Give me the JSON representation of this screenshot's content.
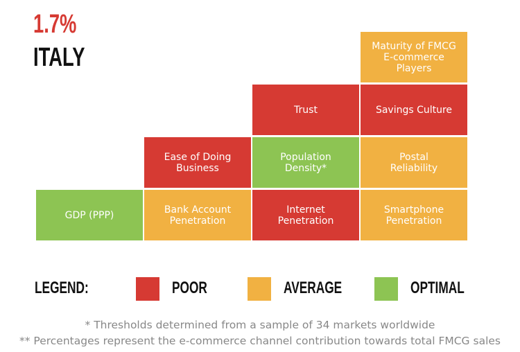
{
  "header": {
    "percentage": "1.7%",
    "country": "ITALY"
  },
  "legend": {
    "title": "LEGEND:",
    "items": [
      {
        "label": "POOR",
        "color": "#d63a33"
      },
      {
        "label": "AVERAGE",
        "color": "#f1b142"
      },
      {
        "label": "OPTIMAL",
        "color": "#8dc453"
      }
    ]
  },
  "columns": [
    [
      {
        "label": "GDP (PPP)",
        "level": 2
      }
    ],
    [
      {
        "label": "Bank Account\nPenetration",
        "level": 1
      },
      {
        "label": "Ease of Doing\nBusiness",
        "level": 0
      }
    ],
    [
      {
        "label": "Internet\nPenetration",
        "level": 0
      },
      {
        "label": "Population\nDensity*",
        "level": 2
      },
      {
        "label": "Trust",
        "level": 0
      }
    ],
    [
      {
        "label": "Smartphone\nPenetration",
        "level": 1
      },
      {
        "label": "Postal\nReliability",
        "level": 1
      },
      {
        "label": "Savings Culture",
        "level": 0
      },
      {
        "label": "Maturity of FMCG\nE-commerce\nPlayers",
        "level": 1
      }
    ]
  ],
  "footnotes": [
    "* Thresholds determined from a sample of 34 markets worldwide",
    "** Percentages represent the e-commerce channel contribution towards total FMCG sales"
  ]
}
